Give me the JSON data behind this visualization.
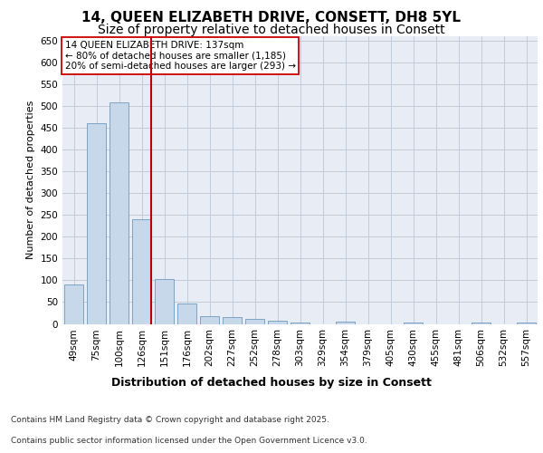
{
  "title_line1": "14, QUEEN ELIZABETH DRIVE, CONSETT, DH8 5YL",
  "title_line2": "Size of property relative to detached houses in Consett",
  "xlabel": "Distribution of detached houses by size in Consett",
  "ylabel": "Number of detached properties",
  "categories": [
    "49sqm",
    "75sqm",
    "100sqm",
    "126sqm",
    "151sqm",
    "176sqm",
    "202sqm",
    "227sqm",
    "252sqm",
    "278sqm",
    "303sqm",
    "329sqm",
    "354sqm",
    "379sqm",
    "405sqm",
    "430sqm",
    "455sqm",
    "481sqm",
    "506sqm",
    "532sqm",
    "557sqm"
  ],
  "values": [
    90,
    460,
    508,
    241,
    103,
    47,
    18,
    15,
    12,
    8,
    3,
    0,
    5,
    0,
    0,
    4,
    0,
    0,
    3,
    0,
    4
  ],
  "bar_color": "#c8d8eb",
  "bar_edge_color": "#7099bb",
  "vline_x": 3.425,
  "annotation_text": "14 QUEEN ELIZABETH DRIVE: 137sqm\n← 80% of detached houses are smaller (1,185)\n20% of semi-detached houses are larger (293) →",
  "annotation_box_color": "#ffffff",
  "annotation_box_edge": "#cc0000",
  "vline_color": "#bb0000",
  "ylim": [
    0,
    660
  ],
  "yticks": [
    0,
    50,
    100,
    150,
    200,
    250,
    300,
    350,
    400,
    450,
    500,
    550,
    600,
    650
  ],
  "grid_color": "#c0ccdd",
  "background_color": "#e8edf5",
  "footer_line1": "Contains HM Land Registry data © Crown copyright and database right 2025.",
  "footer_line2": "Contains public sector information licensed under the Open Government Licence v3.0.",
  "title1_fontsize": 11,
  "title2_fontsize": 10,
  "axis_label_fontsize": 9,
  "tick_fontsize": 7.5,
  "annotation_fontsize": 7.5,
  "footer_fontsize": 6.5,
  "ylabel_fontsize": 8
}
